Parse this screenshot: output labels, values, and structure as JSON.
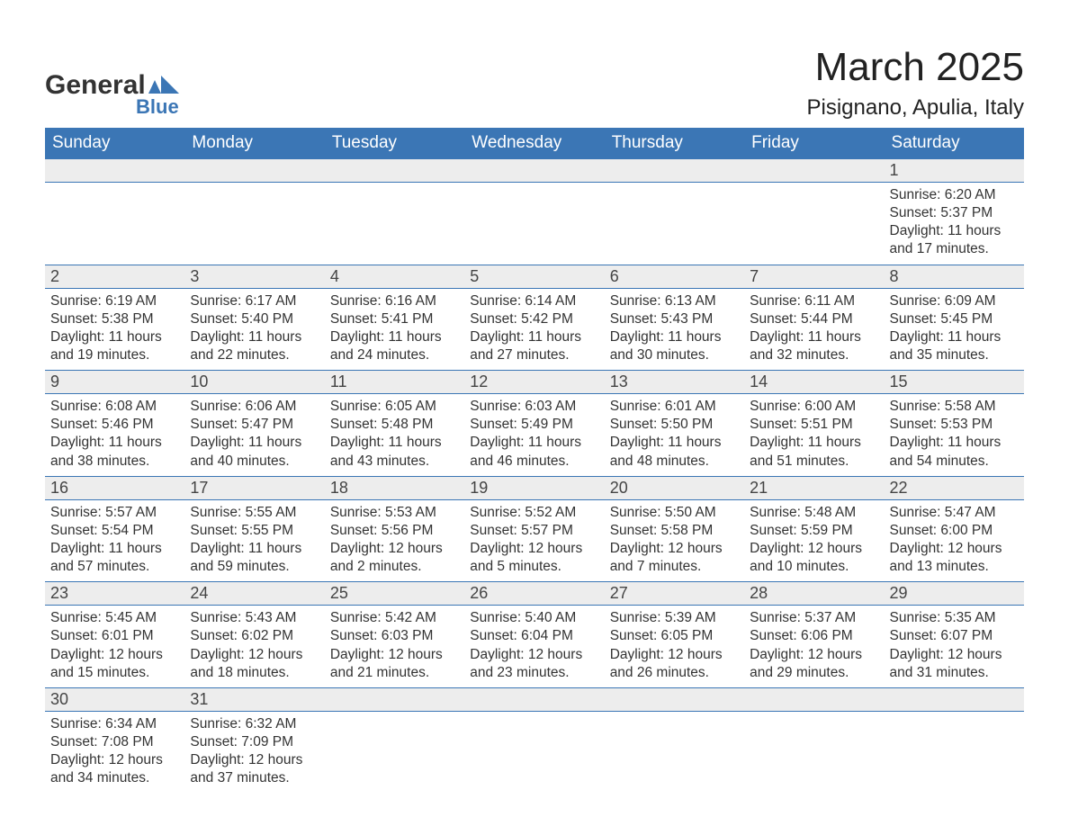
{
  "brand": {
    "line1": "General",
    "line2": "Blue",
    "accent_color": "#3b76b5"
  },
  "header": {
    "month_year": "March 2025",
    "location": "Pisignano, Apulia, Italy"
  },
  "colors": {
    "header_bg": "#3b76b5",
    "header_text": "#ffffff",
    "daynum_bg": "#ededed",
    "text": "#333333",
    "page_bg": "#ffffff",
    "row_border": "#3b76b5"
  },
  "fonts": {
    "month_title_size_pt": 33,
    "location_size_pt": 18,
    "weekday_header_size_pt": 14,
    "daynum_size_pt": 14,
    "detail_size_pt": 12,
    "family": "Arial"
  },
  "table": {
    "columns": [
      "Sunday",
      "Monday",
      "Tuesday",
      "Wednesday",
      "Thursday",
      "Friday",
      "Saturday"
    ],
    "weeks": [
      {
        "daynums": [
          "",
          "",
          "",
          "",
          "",
          "",
          "1"
        ],
        "details": [
          null,
          null,
          null,
          null,
          null,
          null,
          {
            "sunrise": "Sunrise: 6:20 AM",
            "sunset": "Sunset: 5:37 PM",
            "day1": "Daylight: 11 hours",
            "day2": "and 17 minutes."
          }
        ]
      },
      {
        "daynums": [
          "2",
          "3",
          "4",
          "5",
          "6",
          "7",
          "8"
        ],
        "details": [
          {
            "sunrise": "Sunrise: 6:19 AM",
            "sunset": "Sunset: 5:38 PM",
            "day1": "Daylight: 11 hours",
            "day2": "and 19 minutes."
          },
          {
            "sunrise": "Sunrise: 6:17 AM",
            "sunset": "Sunset: 5:40 PM",
            "day1": "Daylight: 11 hours",
            "day2": "and 22 minutes."
          },
          {
            "sunrise": "Sunrise: 6:16 AM",
            "sunset": "Sunset: 5:41 PM",
            "day1": "Daylight: 11 hours",
            "day2": "and 24 minutes."
          },
          {
            "sunrise": "Sunrise: 6:14 AM",
            "sunset": "Sunset: 5:42 PM",
            "day1": "Daylight: 11 hours",
            "day2": "and 27 minutes."
          },
          {
            "sunrise": "Sunrise: 6:13 AM",
            "sunset": "Sunset: 5:43 PM",
            "day1": "Daylight: 11 hours",
            "day2": "and 30 minutes."
          },
          {
            "sunrise": "Sunrise: 6:11 AM",
            "sunset": "Sunset: 5:44 PM",
            "day1": "Daylight: 11 hours",
            "day2": "and 32 minutes."
          },
          {
            "sunrise": "Sunrise: 6:09 AM",
            "sunset": "Sunset: 5:45 PM",
            "day1": "Daylight: 11 hours",
            "day2": "and 35 minutes."
          }
        ]
      },
      {
        "daynums": [
          "9",
          "10",
          "11",
          "12",
          "13",
          "14",
          "15"
        ],
        "details": [
          {
            "sunrise": "Sunrise: 6:08 AM",
            "sunset": "Sunset: 5:46 PM",
            "day1": "Daylight: 11 hours",
            "day2": "and 38 minutes."
          },
          {
            "sunrise": "Sunrise: 6:06 AM",
            "sunset": "Sunset: 5:47 PM",
            "day1": "Daylight: 11 hours",
            "day2": "and 40 minutes."
          },
          {
            "sunrise": "Sunrise: 6:05 AM",
            "sunset": "Sunset: 5:48 PM",
            "day1": "Daylight: 11 hours",
            "day2": "and 43 minutes."
          },
          {
            "sunrise": "Sunrise: 6:03 AM",
            "sunset": "Sunset: 5:49 PM",
            "day1": "Daylight: 11 hours",
            "day2": "and 46 minutes."
          },
          {
            "sunrise": "Sunrise: 6:01 AM",
            "sunset": "Sunset: 5:50 PM",
            "day1": "Daylight: 11 hours",
            "day2": "and 48 minutes."
          },
          {
            "sunrise": "Sunrise: 6:00 AM",
            "sunset": "Sunset: 5:51 PM",
            "day1": "Daylight: 11 hours",
            "day2": "and 51 minutes."
          },
          {
            "sunrise": "Sunrise: 5:58 AM",
            "sunset": "Sunset: 5:53 PM",
            "day1": "Daylight: 11 hours",
            "day2": "and 54 minutes."
          }
        ]
      },
      {
        "daynums": [
          "16",
          "17",
          "18",
          "19",
          "20",
          "21",
          "22"
        ],
        "details": [
          {
            "sunrise": "Sunrise: 5:57 AM",
            "sunset": "Sunset: 5:54 PM",
            "day1": "Daylight: 11 hours",
            "day2": "and 57 minutes."
          },
          {
            "sunrise": "Sunrise: 5:55 AM",
            "sunset": "Sunset: 5:55 PM",
            "day1": "Daylight: 11 hours",
            "day2": "and 59 minutes."
          },
          {
            "sunrise": "Sunrise: 5:53 AM",
            "sunset": "Sunset: 5:56 PM",
            "day1": "Daylight: 12 hours",
            "day2": "and 2 minutes."
          },
          {
            "sunrise": "Sunrise: 5:52 AM",
            "sunset": "Sunset: 5:57 PM",
            "day1": "Daylight: 12 hours",
            "day2": "and 5 minutes."
          },
          {
            "sunrise": "Sunrise: 5:50 AM",
            "sunset": "Sunset: 5:58 PM",
            "day1": "Daylight: 12 hours",
            "day2": "and 7 minutes."
          },
          {
            "sunrise": "Sunrise: 5:48 AM",
            "sunset": "Sunset: 5:59 PM",
            "day1": "Daylight: 12 hours",
            "day2": "and 10 minutes."
          },
          {
            "sunrise": "Sunrise: 5:47 AM",
            "sunset": "Sunset: 6:00 PM",
            "day1": "Daylight: 12 hours",
            "day2": "and 13 minutes."
          }
        ]
      },
      {
        "daynums": [
          "23",
          "24",
          "25",
          "26",
          "27",
          "28",
          "29"
        ],
        "details": [
          {
            "sunrise": "Sunrise: 5:45 AM",
            "sunset": "Sunset: 6:01 PM",
            "day1": "Daylight: 12 hours",
            "day2": "and 15 minutes."
          },
          {
            "sunrise": "Sunrise: 5:43 AM",
            "sunset": "Sunset: 6:02 PM",
            "day1": "Daylight: 12 hours",
            "day2": "and 18 minutes."
          },
          {
            "sunrise": "Sunrise: 5:42 AM",
            "sunset": "Sunset: 6:03 PM",
            "day1": "Daylight: 12 hours",
            "day2": "and 21 minutes."
          },
          {
            "sunrise": "Sunrise: 5:40 AM",
            "sunset": "Sunset: 6:04 PM",
            "day1": "Daylight: 12 hours",
            "day2": "and 23 minutes."
          },
          {
            "sunrise": "Sunrise: 5:39 AM",
            "sunset": "Sunset: 6:05 PM",
            "day1": "Daylight: 12 hours",
            "day2": "and 26 minutes."
          },
          {
            "sunrise": "Sunrise: 5:37 AM",
            "sunset": "Sunset: 6:06 PM",
            "day1": "Daylight: 12 hours",
            "day2": "and 29 minutes."
          },
          {
            "sunrise": "Sunrise: 5:35 AM",
            "sunset": "Sunset: 6:07 PM",
            "day1": "Daylight: 12 hours",
            "day2": "and 31 minutes."
          }
        ]
      },
      {
        "daynums": [
          "30",
          "31",
          "",
          "",
          "",
          "",
          ""
        ],
        "details": [
          {
            "sunrise": "Sunrise: 6:34 AM",
            "sunset": "Sunset: 7:08 PM",
            "day1": "Daylight: 12 hours",
            "day2": "and 34 minutes."
          },
          {
            "sunrise": "Sunrise: 6:32 AM",
            "sunset": "Sunset: 7:09 PM",
            "day1": "Daylight: 12 hours",
            "day2": "and 37 minutes."
          },
          null,
          null,
          null,
          null,
          null
        ]
      }
    ]
  }
}
